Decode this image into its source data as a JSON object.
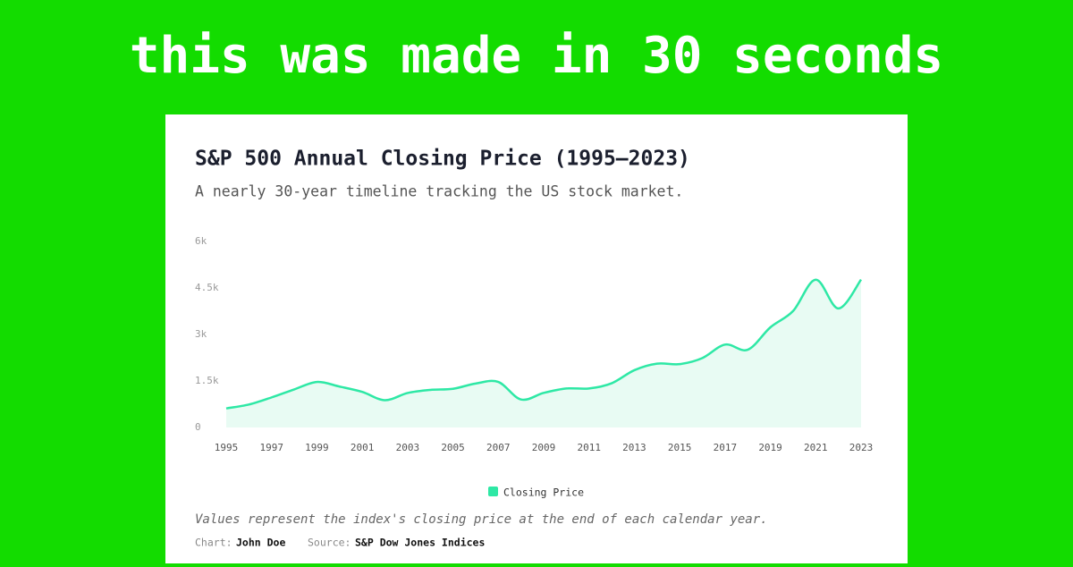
{
  "header": "this was made in 30 seconds",
  "chart_data": {
    "type": "area",
    "title": "S&P 500 Annual Closing Price (1995–2023)",
    "subtitle": "A nearly 30-year timeline tracking the US stock market.",
    "x": [
      1995,
      1996,
      1997,
      1998,
      1999,
      2000,
      2001,
      2002,
      2003,
      2004,
      2005,
      2006,
      2007,
      2008,
      2009,
      2010,
      2011,
      2012,
      2013,
      2014,
      2015,
      2016,
      2017,
      2018,
      2019,
      2020,
      2021,
      2022,
      2023
    ],
    "series": [
      {
        "name": "Closing Price",
        "color": "#2ee8a5",
        "fill": "#e8fbf3",
        "values": [
          616,
          741,
          970,
          1229,
          1469,
          1320,
          1148,
          880,
          1112,
          1212,
          1248,
          1418,
          1468,
          903,
          1115,
          1258,
          1258,
          1426,
          1848,
          2059,
          2044,
          2239,
          2674,
          2507,
          3231,
          3756,
          4766,
          3840,
          4770
        ]
      }
    ],
    "xlim": [
      1995,
      2023
    ],
    "xticks": [
      1995,
      1997,
      1999,
      2001,
      2003,
      2005,
      2007,
      2009,
      2011,
      2013,
      2015,
      2017,
      2019,
      2021,
      2023
    ],
    "ylim": [
      0,
      6000
    ],
    "yticks": [
      0,
      {
        "value": 1500,
        "label": "1.5k"
      },
      {
        "value": 3000,
        "label": "3k"
      },
      {
        "value": 4500,
        "label": "4.5k"
      },
      {
        "value": 6000,
        "label": "6k"
      }
    ],
    "grid": false,
    "note": "Values represent the index's closing price at the end of each calendar year.",
    "credits": {
      "chart_label": "Chart:",
      "chart_author": "John Doe",
      "source_label": "Source:",
      "source": "S&P Dow Jones Indices"
    }
  }
}
